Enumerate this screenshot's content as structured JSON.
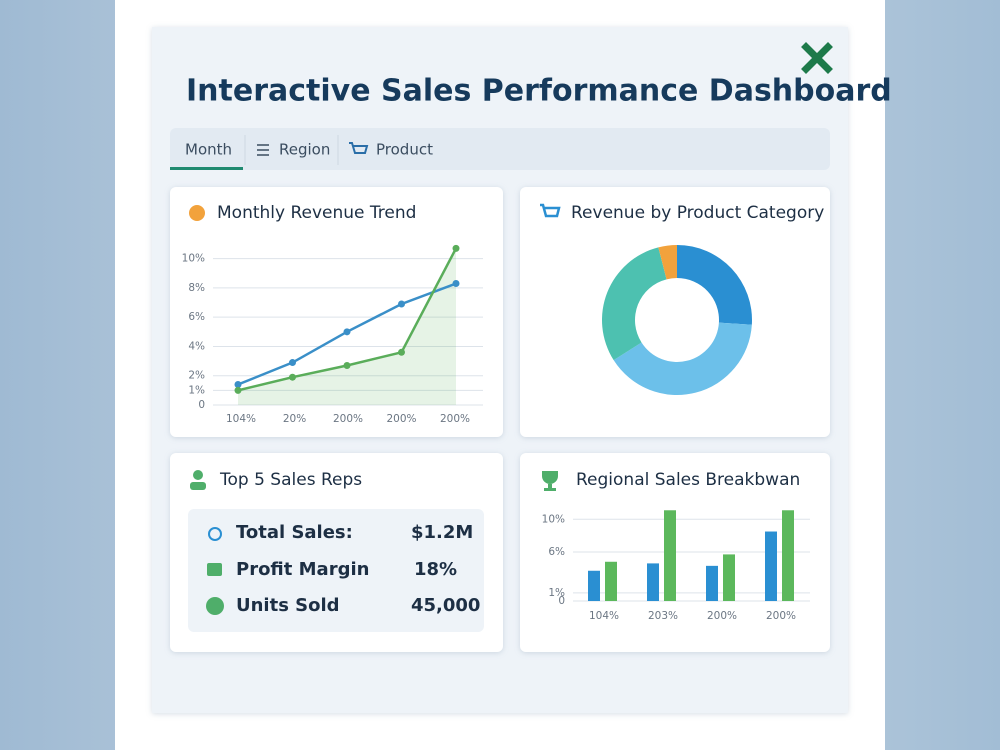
{
  "title": "Interactive Sales Performance Dashboard",
  "tabs": [
    "Month",
    "Region",
    "Product"
  ],
  "chart_data": [
    {
      "type": "line",
      "title": "Monthly Revenue Trend",
      "categories": [
        "104%",
        "20%",
        "200%",
        "200%",
        "200%"
      ],
      "series": [
        {
          "color": "#3a8fc8",
          "values": [
            1.4,
            2.9,
            5,
            6.9,
            8.3
          ]
        },
        {
          "color": "#5aad5a",
          "values": [
            1,
            1.9,
            2.7,
            3.6,
            10.7
          ]
        }
      ],
      "ylim": [
        0,
        11
      ],
      "yticks": [
        0,
        {
          "value": 1,
          "label": "1%"
        },
        {
          "value": 2,
          "label": "2%"
        },
        {
          "value": 4,
          "label": "4%"
        },
        {
          "value": 6,
          "label": "6%"
        },
        {
          "value": 8,
          "label": "8%"
        },
        {
          "value": 10,
          "label": "10%"
        }
      ],
      "grid": true
    },
    {
      "type": "pie",
      "title": "Revenue by Product Category",
      "values": [
        26,
        40,
        30,
        4
      ],
      "colors": [
        "#2a8fd2",
        "#6cc0ea",
        "#4dc1b0",
        "#f2a23c"
      ]
    },
    {
      "type": "bar",
      "title": "Regional Sales Breakbwan",
      "categories": [
        "104%",
        "203%",
        "200%",
        "200%"
      ],
      "series": [
        {
          "color": "#2a8fd2",
          "values": [
            3.7,
            4.6,
            4.3,
            8.5
          ]
        },
        {
          "color": "#5cb85c",
          "values": [
            4.8,
            11.1,
            5.7,
            11.1
          ]
        }
      ],
      "ylim": [
        0,
        11.5
      ],
      "yticks": [
        0,
        {
          "value": 1,
          "label": "1%"
        },
        {
          "value": 6,
          "label": "6%"
        },
        {
          "value": 10,
          "label": "10%"
        }
      ],
      "grid": true
    }
  ],
  "kpi": {
    "title": "Top 5 Sales Reps",
    "rows": [
      [
        "Total Sales:",
        "$1.2M"
      ],
      [
        "Profit Margin",
        "18%"
      ],
      [
        "Units Sold",
        "45,000"
      ]
    ]
  }
}
